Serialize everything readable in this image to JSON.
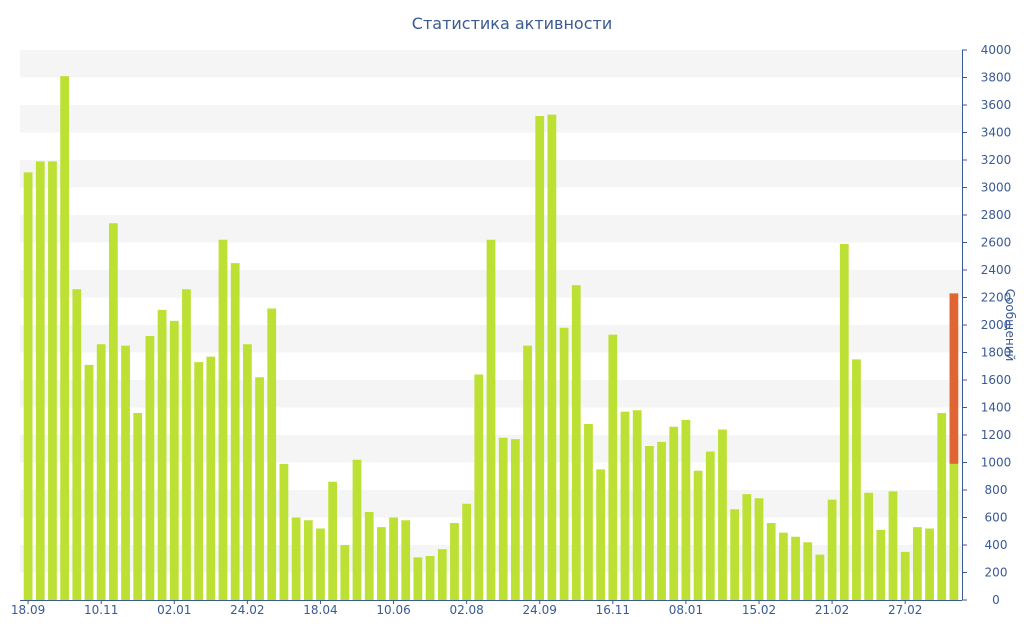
{
  "chart_data": {
    "type": "bar",
    "title": "Статистика активности",
    "ylabel": "Сообщений",
    "xlabel": "",
    "ylim": [
      0,
      4000
    ],
    "yticks": [
      0,
      200,
      400,
      600,
      800,
      1000,
      1200,
      1400,
      1600,
      1800,
      2000,
      2200,
      2400,
      2600,
      2800,
      3000,
      3200,
      3400,
      3600,
      3800,
      4000
    ],
    "y_axis_side": "right",
    "x_tick_labels": [
      {
        "index": 0,
        "label": "18.09"
      },
      {
        "index": 6,
        "label": "10.11"
      },
      {
        "index": 12,
        "label": "02.01"
      },
      {
        "index": 18,
        "label": "24.02"
      },
      {
        "index": 24,
        "label": "18.04"
      },
      {
        "index": 30,
        "label": "10.06"
      },
      {
        "index": 36,
        "label": "02.08"
      },
      {
        "index": 42,
        "label": "24.09"
      },
      {
        "index": 48,
        "label": "16.11"
      },
      {
        "index": 54,
        "label": "08.01"
      },
      {
        "index": 60,
        "label": "15.02"
      },
      {
        "index": 66,
        "label": "21.02"
      },
      {
        "index": 72,
        "label": "27.02"
      }
    ],
    "grid_bands": true,
    "series": [
      {
        "color": "#bce034",
        "values": [
          3110,
          3190,
          3190,
          3810,
          2260,
          1710,
          1860,
          2740,
          1850,
          1360,
          1920,
          2110,
          2030,
          2260,
          1730,
          1770,
          2620,
          2450,
          1860,
          1620,
          2120,
          990,
          600,
          580,
          520,
          860,
          400,
          1020,
          640,
          530,
          600,
          580,
          310,
          320,
          370,
          560,
          700,
          1640,
          2620,
          1180,
          1170,
          1850,
          3520,
          3530,
          1980,
          2290,
          1280,
          950,
          1930,
          1370,
          1380,
          1120,
          1150,
          1260,
          1310,
          940,
          1080,
          1240,
          660,
          770,
          740,
          560,
          490,
          460,
          420,
          330,
          730,
          2590,
          1750,
          780,
          510,
          790,
          350,
          530,
          520,
          1360,
          990
        ]
      },
      {
        "color": "#e06533",
        "stack_on_index": 76,
        "values_at_index": {
          "76": 1240
        }
      }
    ]
  }
}
